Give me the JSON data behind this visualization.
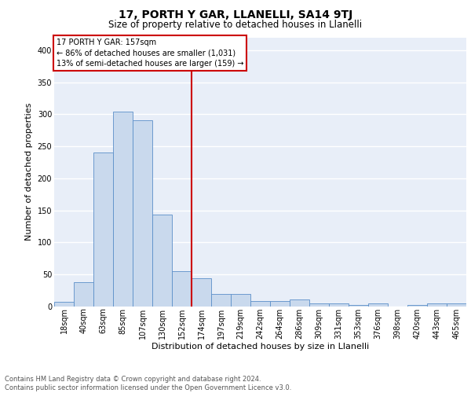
{
  "title": "17, PORTH Y GAR, LLANELLI, SA14 9TJ",
  "subtitle": "Size of property relative to detached houses in Llanelli",
  "xlabel": "Distribution of detached houses by size in Llanelli",
  "ylabel": "Number of detached properties",
  "bar_labels": [
    "18sqm",
    "40sqm",
    "63sqm",
    "85sqm",
    "107sqm",
    "130sqm",
    "152sqm",
    "174sqm",
    "197sqm",
    "219sqm",
    "242sqm",
    "264sqm",
    "286sqm",
    "309sqm",
    "331sqm",
    "353sqm",
    "376sqm",
    "398sqm",
    "420sqm",
    "443sqm",
    "465sqm"
  ],
  "bar_values": [
    7,
    38,
    240,
    304,
    291,
    144,
    55,
    44,
    20,
    20,
    8,
    8,
    11,
    5,
    5,
    3,
    5,
    0,
    3,
    5,
    5
  ],
  "bar_color": "#c9d9ed",
  "bar_edge_color": "#5b8fc9",
  "vline_color": "#cc0000",
  "annotation_text": "17 PORTH Y GAR: 157sqm\n← 86% of detached houses are smaller (1,031)\n13% of semi-detached houses are larger (159) →",
  "annotation_box_color": "#ffffff",
  "annotation_box_edge_color": "#cc0000",
  "ylim": [
    0,
    420
  ],
  "footnote": "Contains HM Land Registry data © Crown copyright and database right 2024.\nContains public sector information licensed under the Open Government Licence v3.0.",
  "background_color": "#e8eef8",
  "grid_color": "#ffffff",
  "title_fontsize": 10,
  "subtitle_fontsize": 8.5,
  "ylabel_fontsize": 8,
  "xlabel_fontsize": 8,
  "tick_fontsize": 7,
  "annotation_fontsize": 7,
  "footnote_fontsize": 6
}
